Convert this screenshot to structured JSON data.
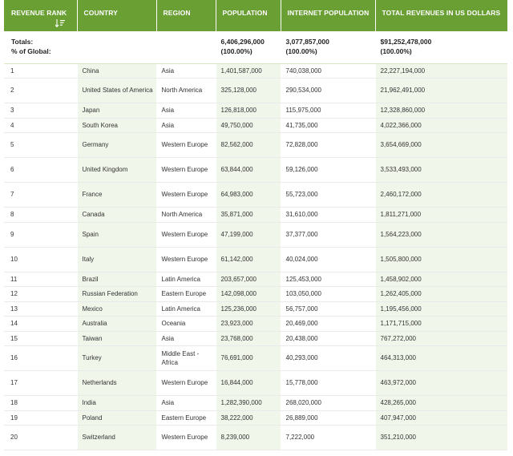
{
  "table": {
    "headers": {
      "rank": "REVENUE RANK",
      "country": "COUNTRY",
      "region": "REGION",
      "population": "POPULATION",
      "internet_population": "INTERNET POPULATION",
      "total_revenues": "TOTAL REVENUES IN US DOLLARS"
    },
    "sort_icon": "sort-descending-icon",
    "totals": {
      "label_line1": "Totals:",
      "label_line2": "% of Global:",
      "population": "6,406,296,000",
      "population_pct": "(100.00%)",
      "internet_population": "3,077,857,000",
      "internet_population_pct": "(100.00%)",
      "total_revenues": "$91,252,478,000",
      "total_revenues_pct": "(100.00%)"
    },
    "rows": [
      {
        "rank": "1",
        "country": "China",
        "region": "Asia",
        "population": "1,401,587,000",
        "internet_population": "740,038,000",
        "total_revenues": "22,227,194,000"
      },
      {
        "rank": "2",
        "country": "United States of America",
        "region": "North America",
        "population": "325,128,000",
        "internet_population": "290,534,000",
        "total_revenues": "21,962,491,000"
      },
      {
        "rank": "3",
        "country": "Japan",
        "region": "Asia",
        "population": "126,818,000",
        "internet_population": "115,975,000",
        "total_revenues": "12,328,860,000"
      },
      {
        "rank": "4",
        "country": "South Korea",
        "region": "Asia",
        "population": "49,750,000",
        "internet_population": "41,735,000",
        "total_revenues": "4,022,366,000"
      },
      {
        "rank": "5",
        "country": "Germany",
        "region": "Western Europe",
        "population": "82,562,000",
        "internet_population": "72,828,000",
        "total_revenues": "3,654,669,000"
      },
      {
        "rank": "6",
        "country": "United Kingdom",
        "region": "Western Europe",
        "population": "63,844,000",
        "internet_population": "59,126,000",
        "total_revenues": "3,533,493,000"
      },
      {
        "rank": "7",
        "country": "France",
        "region": "Western Europe",
        "population": "64,983,000",
        "internet_population": "55,723,000",
        "total_revenues": "2,460,172,000"
      },
      {
        "rank": "8",
        "country": "Canada",
        "region": "North America",
        "population": "35,871,000",
        "internet_population": "31,610,000",
        "total_revenues": "1,811,271,000"
      },
      {
        "rank": "9",
        "country": "Spain",
        "region": "Western Europe",
        "population": "47,199,000",
        "internet_population": "37,377,000",
        "total_revenues": "1,564,223,000"
      },
      {
        "rank": "10",
        "country": "Italy",
        "region": "Western Europe",
        "population": "61,142,000",
        "internet_population": "40,024,000",
        "total_revenues": "1,505,800,000"
      },
      {
        "rank": "11",
        "country": "Brazil",
        "region": "Latin America",
        "population": "203,657,000",
        "internet_population": "125,453,000",
        "total_revenues": "1,458,902,000"
      },
      {
        "rank": "12",
        "country": "Russian Federation",
        "region": "Eastern Europe",
        "population": "142,098,000",
        "internet_population": "103,050,000",
        "total_revenues": "1,262,405,000"
      },
      {
        "rank": "13",
        "country": "Mexico",
        "region": "Latin America",
        "population": "125,236,000",
        "internet_population": "56,757,000",
        "total_revenues": "1,195,456,000"
      },
      {
        "rank": "14",
        "country": "Australia",
        "region": "Oceania",
        "population": "23,923,000",
        "internet_population": "20,469,000",
        "total_revenues": "1,171,715,000"
      },
      {
        "rank": "15",
        "country": "Taiwan",
        "region": "Asia",
        "population": "23,768,000",
        "internet_population": "20,438,000",
        "total_revenues": "767,272,000"
      },
      {
        "rank": "16",
        "country": "Turkey",
        "region": "Middle East - Africa",
        "population": "76,691,000",
        "internet_population": "40,293,000",
        "total_revenues": "464,313,000"
      },
      {
        "rank": "17",
        "country": "Netherlands",
        "region": "Western Europe",
        "population": "16,844,000",
        "internet_population": "15,778,000",
        "total_revenues": "463,972,000"
      },
      {
        "rank": "18",
        "country": "India",
        "region": "Asia",
        "population": "1,282,390,000",
        "internet_population": "268,020,000",
        "total_revenues": "428,265,000"
      },
      {
        "rank": "19",
        "country": "Poland",
        "region": "Eastern Europe",
        "population": "38,222,000",
        "internet_population": "26,889,000",
        "total_revenues": "407,947,000"
      },
      {
        "rank": "20",
        "country": "Switzerland",
        "region": "Western Europe",
        "population": "8,239,000",
        "internet_population": "7,222,000",
        "total_revenues": "351,210,000"
      }
    ]
  },
  "colors": {
    "header_bg": "#6a9f34",
    "header_text": "#ffffff",
    "stripe_col_bg": "#f1f6ea",
    "cell_text": "#333333"
  }
}
